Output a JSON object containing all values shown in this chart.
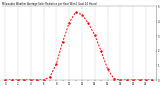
{
  "title": "Milwaukee Weather Average Solar Radiation per Hour W/m2 (Last 24 Hours)",
  "hours": [
    0,
    1,
    2,
    3,
    4,
    5,
    6,
    7,
    8,
    9,
    10,
    11,
    12,
    13,
    14,
    15,
    16,
    17,
    18,
    19,
    20,
    21,
    22,
    23
  ],
  "values": [
    0,
    0,
    0,
    0,
    0,
    0,
    0,
    20,
    110,
    260,
    390,
    460,
    445,
    385,
    305,
    195,
    75,
    8,
    0,
    0,
    0,
    0,
    0,
    0
  ],
  "line_color": "#ff0000",
  "bg_color": "#ffffff",
  "plot_bg": "#ffffff",
  "text_color": "#000000",
  "grid_color": "#aaaaaa",
  "ylim": [
    0,
    500
  ],
  "xlim": [
    -0.5,
    23.5
  ],
  "ytick_positions": [
    0,
    100,
    200,
    300,
    400,
    500
  ],
  "ytick_labels": [
    "0",
    "1",
    "2",
    "3",
    "4",
    "5"
  ]
}
